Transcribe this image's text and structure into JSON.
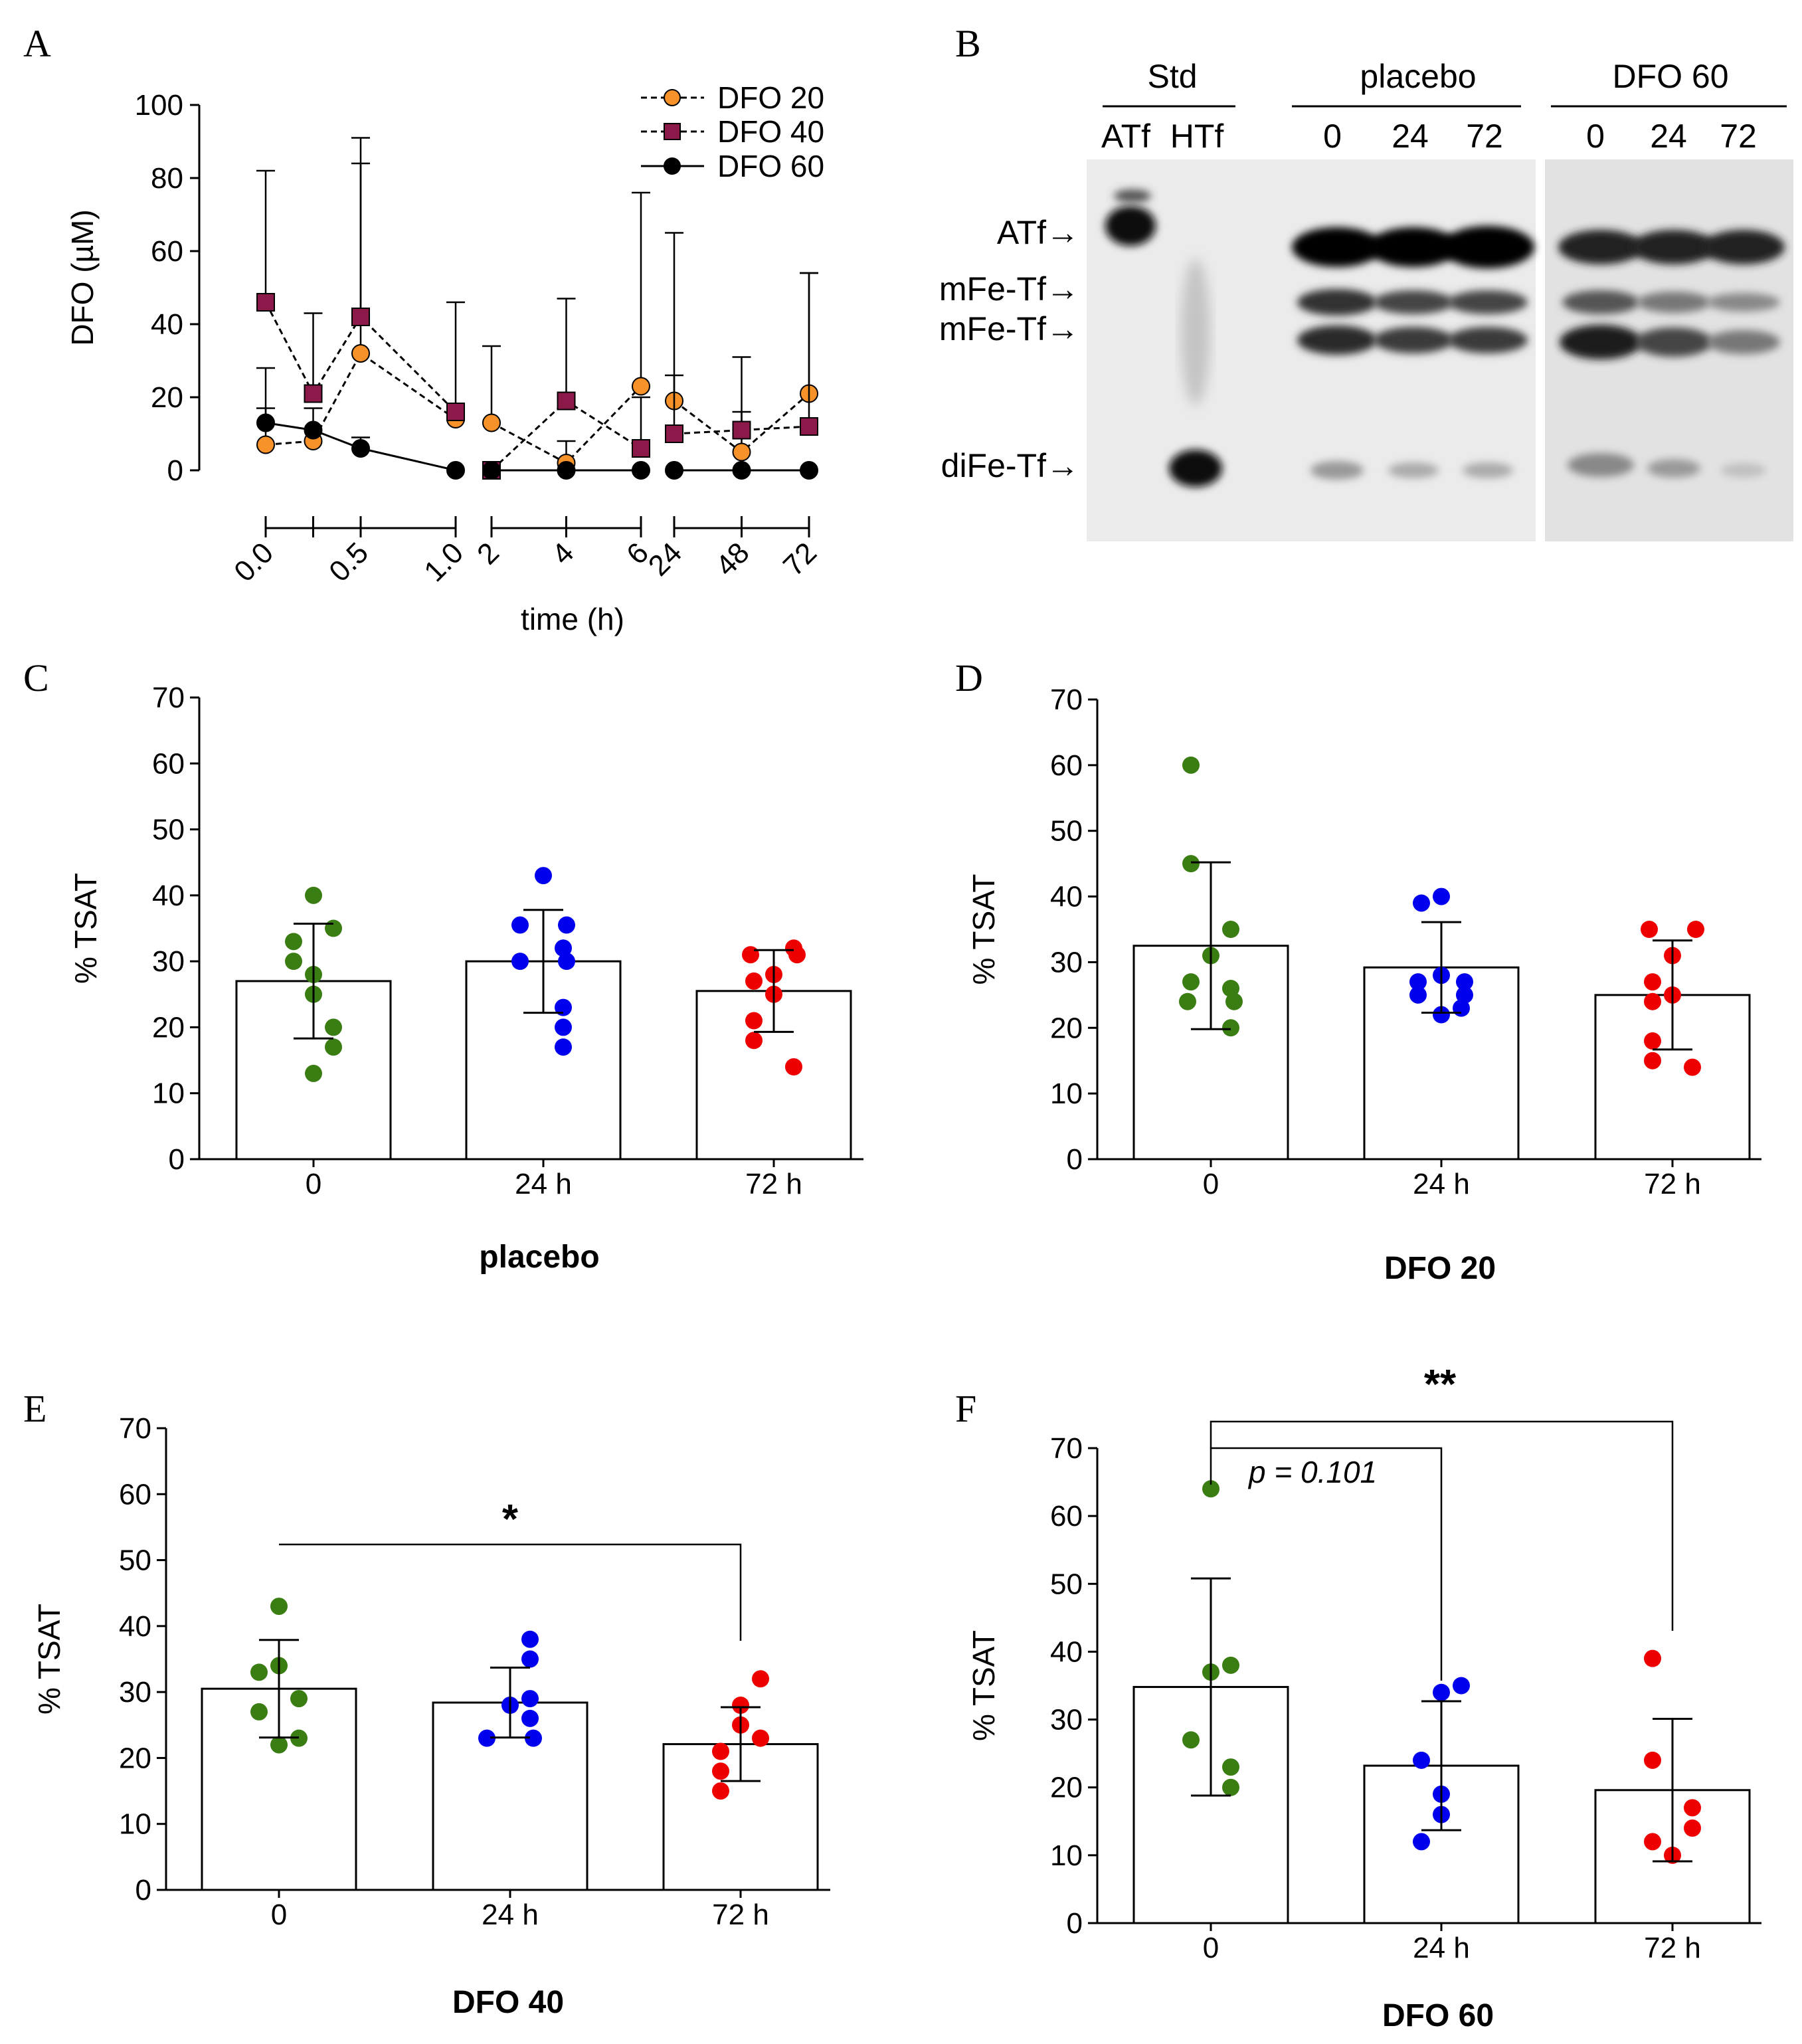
{
  "panels": {
    "A": "A",
    "B": "B",
    "C": "C",
    "D": "D",
    "E": "E",
    "F": "F"
  },
  "colors": {
    "dfo20": "#f7922a",
    "dfo40": "#8b1a4a",
    "dfo60": "#000000",
    "green": "#3a7d13",
    "blue": "#0000ee",
    "red": "#ee0000"
  },
  "chart_data": [
    {
      "type": "line",
      "panel": "A",
      "ylabel": "DFO (µM)",
      "xlabel": "time (h)",
      "ylim": [
        0,
        100
      ],
      "yticks": [
        "0",
        "20",
        "40",
        "60",
        "80",
        "100"
      ],
      "x_labels": [
        "0.0",
        "0.5",
        "1.0",
        "2",
        "4",
        "6",
        "24",
        "48",
        "72"
      ],
      "segments": [
        {
          "times": [
            0,
            0.25,
            0.5,
            1.0
          ]
        },
        {
          "times": [
            2,
            4,
            6
          ]
        },
        {
          "times": [
            24,
            48,
            72
          ]
        }
      ],
      "series": [
        {
          "name": "DFO 20",
          "marker": "circle",
          "times": [
            0,
            0.25,
            0.5,
            1.0,
            2,
            4,
            6,
            24,
            48,
            72
          ],
          "values": [
            7,
            8,
            32,
            14,
            13,
            2,
            23,
            19,
            5,
            21
          ],
          "err": [
            21,
            null,
            52,
            null,
            21,
            6,
            53,
            46,
            11,
            33
          ]
        },
        {
          "name": "DFO 40",
          "marker": "square",
          "times": [
            0,
            0.25,
            0.5,
            1.0,
            2,
            4,
            6,
            24,
            48,
            72
          ],
          "values": [
            46,
            21,
            42,
            16,
            0,
            19,
            6,
            10,
            11,
            12
          ],
          "err": [
            36,
            22,
            49,
            30,
            null,
            28,
            14,
            16,
            20,
            42
          ]
        },
        {
          "name": "DFO 60",
          "marker": "circle",
          "times": [
            0,
            0.25,
            0.5,
            1.0,
            2,
            4,
            6,
            24,
            48,
            72
          ],
          "values": [
            13,
            11,
            6,
            0,
            0,
            0,
            0,
            0,
            0,
            0
          ],
          "err": [
            4,
            6,
            3,
            null,
            null,
            null,
            null,
            null,
            null,
            null
          ]
        }
      ]
    },
    {
      "type": "bar",
      "panel": "C",
      "title": "placebo",
      "ylabel": "% TSAT",
      "ylim": [
        0,
        70
      ],
      "yticks": [
        "0",
        "10",
        "20",
        "30",
        "40",
        "50",
        "60",
        "70"
      ],
      "categories": [
        "0",
        "24 h",
        "72 h"
      ],
      "values": [
        27,
        30,
        25.5
      ],
      "sd": [
        8.7,
        7.8,
        6.2
      ],
      "points": [
        [
          40,
          35,
          33,
          30,
          28,
          25,
          20,
          17,
          13
        ],
        [
          43,
          35.5,
          35.5,
          32,
          30,
          30,
          23,
          20,
          17
        ],
        [
          32,
          31,
          31,
          28,
          27,
          25,
          21,
          18,
          14
        ]
      ]
    },
    {
      "type": "bar",
      "panel": "D",
      "title": "DFO 20",
      "ylabel": "% TSAT",
      "ylim": [
        0,
        70
      ],
      "yticks": [
        "0",
        "10",
        "20",
        "30",
        "40",
        "50",
        "60",
        "70"
      ],
      "categories": [
        "0",
        "24 h",
        "72 h"
      ],
      "values": [
        32.5,
        29.2,
        25
      ],
      "sd": [
        12.7,
        6.9,
        8.3
      ],
      "points": [
        [
          60,
          45,
          35,
          31,
          27,
          26,
          24,
          24,
          20
        ],
        [
          40,
          39,
          28,
          27,
          27,
          25,
          25,
          23,
          22
        ],
        [
          35,
          35,
          31,
          27,
          25,
          24,
          18,
          15,
          14
        ]
      ]
    },
    {
      "type": "bar",
      "panel": "E",
      "title": "DFO 40",
      "ylabel": "% TSAT",
      "ylim": [
        0,
        70
      ],
      "yticks": [
        "0",
        "10",
        "20",
        "30",
        "40",
        "50",
        "60",
        "70"
      ],
      "categories": [
        "0",
        "24 h",
        "72 h"
      ],
      "values": [
        30.5,
        28.4,
        22.1
      ],
      "sd": [
        7.4,
        5.3,
        5.6
      ],
      "points": [
        [
          43,
          34,
          33,
          29,
          27,
          23,
          22
        ],
        [
          38,
          35,
          29,
          28,
          26,
          23,
          23
        ],
        [
          32,
          28,
          25,
          23,
          21,
          18,
          15
        ]
      ],
      "significance": [
        {
          "from": "0",
          "to": "72 h",
          "label": "*"
        }
      ]
    },
    {
      "type": "bar",
      "panel": "F",
      "title": "DFO 60",
      "ylabel": "% TSAT",
      "ylim": [
        0,
        70
      ],
      "yticks": [
        "0",
        "10",
        "20",
        "30",
        "40",
        "50",
        "60",
        "70"
      ],
      "categories": [
        "0",
        "24 h",
        "72 h"
      ],
      "values": [
        34.8,
        23.2,
        19.6
      ],
      "sd": [
        16,
        9.5,
        10.5
      ],
      "points": [
        [
          64,
          38,
          37,
          27,
          23,
          20
        ],
        [
          35,
          34,
          24,
          19,
          16,
          12
        ],
        [
          39,
          24,
          17,
          14,
          12,
          10
        ]
      ],
      "significance": [
        {
          "from": "0",
          "to": "24 h",
          "label": "p = 0.101"
        },
        {
          "from": "0",
          "to": "72 h",
          "label": "**"
        }
      ]
    }
  ],
  "blot": {
    "groups": [
      "Std",
      "placebo",
      "DFO 60"
    ],
    "lanes": [
      "ATf",
      "HTf",
      "0",
      "24",
      "72",
      "0",
      "24",
      "72"
    ],
    "bands": [
      "ATf→",
      "mFe-Tf→",
      "mFe-Tf→",
      "diFe-Tf→"
    ]
  }
}
